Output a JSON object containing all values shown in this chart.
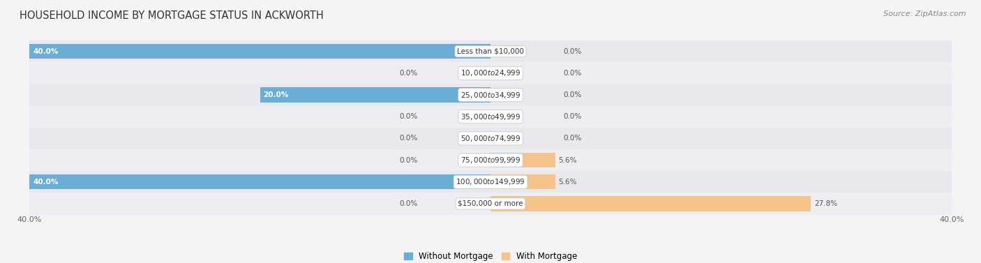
{
  "title": "HOUSEHOLD INCOME BY MORTGAGE STATUS IN ACKWORTH",
  "source": "Source: ZipAtlas.com",
  "categories": [
    "Less than $10,000",
    "$10,000 to $24,999",
    "$25,000 to $34,999",
    "$35,000 to $49,999",
    "$50,000 to $74,999",
    "$75,000 to $99,999",
    "$100,000 to $149,999",
    "$150,000 or more"
  ],
  "without_mortgage": [
    40.0,
    0.0,
    20.0,
    0.0,
    0.0,
    0.0,
    40.0,
    0.0
  ],
  "with_mortgage": [
    0.0,
    0.0,
    0.0,
    0.0,
    0.0,
    5.6,
    5.6,
    27.8
  ],
  "color_without": "#6aaed6",
  "color_with": "#f5c48a",
  "xlim": 40.0,
  "bar_height": 0.68,
  "title_fontsize": 10.5,
  "label_fontsize": 7.5,
  "tick_fontsize": 8,
  "source_fontsize": 8,
  "legend_fontsize": 8.5,
  "figure_bg": "#f4f4f4",
  "row_colors": [
    "#e8e8ed",
    "#ededf2"
  ]
}
